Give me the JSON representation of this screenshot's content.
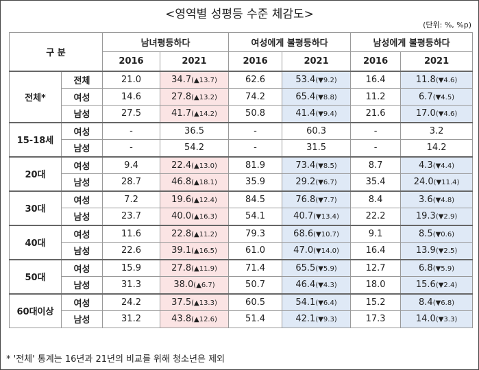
{
  "title": "<영역별 성평등 수준 체감도>",
  "unit": "(단위: %, %p)",
  "header": {
    "group_label": "구 분",
    "groups": [
      "남녀평등하다",
      "여성에게 불평등하다",
      "남성에게 불평등하다"
    ],
    "years": [
      "2016",
      "2021"
    ]
  },
  "groups": [
    {
      "label": "전체*",
      "rows": [
        {
          "sub": "전체",
          "cells": [
            "21.0",
            {
              "value": "34.7",
              "change": "(▲13.7)"
            },
            "62.6",
            {
              "value": "53.4",
              "change": "(▼9.2)"
            },
            "16.4",
            {
              "value": "11.8",
              "change": "(▼4.6)"
            }
          ]
        },
        {
          "sub": "여성",
          "cells": [
            "14.6",
            {
              "value": "27.8",
              "change": "(▲13.2)"
            },
            "74.2",
            {
              "value": "65.4",
              "change": "(▼8.8)"
            },
            "11.2",
            {
              "value": "6.7",
              "change": "(▼4.5)"
            }
          ]
        },
        {
          "sub": "남성",
          "cells": [
            "27.5",
            {
              "value": "41.7",
              "change": "(▲14.2)"
            },
            "50.8",
            {
              "value": "41.4",
              "change": "(▼9.4)"
            },
            "21.6",
            {
              "value": "17.0",
              "change": "(▼4.6)"
            }
          ]
        }
      ]
    },
    {
      "label": "15-18세",
      "rows": [
        {
          "sub": "여성",
          "cells": [
            "-",
            "36.5",
            "-",
            "60.3",
            "-",
            "3.2"
          ]
        },
        {
          "sub": "남성",
          "cells": [
            "-",
            "54.2",
            "-",
            "31.5",
            "-",
            "14.2"
          ]
        }
      ]
    },
    {
      "label": "20대",
      "rows": [
        {
          "sub": "여성",
          "cells": [
            "9.4",
            {
              "value": "22.4",
              "change": "(▲13.0)"
            },
            "81.9",
            {
              "value": "73.4",
              "change": "(▼8.5)"
            },
            "8.7",
            {
              "value": "4.3",
              "change": "(▼4.4)"
            }
          ]
        },
        {
          "sub": "남성",
          "cells": [
            "28.7",
            {
              "value": "46.8",
              "change": "(▲18.1)"
            },
            "35.9",
            {
              "value": "29.2",
              "change": "(▼6.7)"
            },
            "35.4",
            {
              "value": "24.0",
              "change": "(▼11.4)"
            }
          ]
        }
      ]
    },
    {
      "label": "30대",
      "rows": [
        {
          "sub": "여성",
          "cells": [
            "7.2",
            {
              "value": "19.6",
              "change": "(▲12.4)"
            },
            "84.5",
            {
              "value": "76.8",
              "change": "(▼7.7)"
            },
            "8.4",
            {
              "value": "3.6",
              "change": "(▼4.8)"
            }
          ]
        },
        {
          "sub": "남성",
          "cells": [
            "23.7",
            {
              "value": "40.0",
              "change": "(▲16.3)"
            },
            "54.1",
            {
              "value": "40.7",
              "change": "(▼13.4)"
            },
            "22.2",
            {
              "value": "19.3",
              "change": "(▼2.9)"
            }
          ]
        }
      ]
    },
    {
      "label": "40대",
      "rows": [
        {
          "sub": "여성",
          "cells": [
            "11.6",
            {
              "value": "22.8",
              "change": "(▲11.2)"
            },
            "79.3",
            {
              "value": "68.6",
              "change": "(▼10.7)"
            },
            "9.1",
            {
              "value": "8.5",
              "change": "(▼0.6)"
            }
          ]
        },
        {
          "sub": "남성",
          "cells": [
            "22.6",
            {
              "value": "39.1",
              "change": "(▲16.5)"
            },
            "61.0",
            {
              "value": "47.0",
              "change": "(▼14.0)"
            },
            "16.4",
            {
              "value": "13.9",
              "change": "(▼2.5)"
            }
          ]
        }
      ]
    },
    {
      "label": "50대",
      "rows": [
        {
          "sub": "여성",
          "cells": [
            "15.9",
            {
              "value": "27.8",
              "change": "(▲11.9)"
            },
            "71.4",
            {
              "value": "65.5",
              "change": "(▼5.9)"
            },
            "12.7",
            {
              "value": "6.8",
              "change": "(▼5.9)"
            }
          ]
        },
        {
          "sub": "남성",
          "cells": [
            "31.3",
            {
              "value": "38.0",
              "change": "(▲6.7)"
            },
            "50.7",
            {
              "value": "46.4",
              "change": "(▼4.3)"
            },
            "18.0",
            {
              "value": "15.6",
              "change": "(▼2.4)"
            }
          ]
        }
      ]
    },
    {
      "label": "60대이상",
      "rows": [
        {
          "sub": "여성",
          "cells": [
            "24.2",
            {
              "value": "37.5",
              "change": "(▲13.3)"
            },
            "60.5",
            {
              "value": "54.1",
              "change": "(▼6.4)"
            },
            "15.2",
            {
              "value": "8.4",
              "change": "(▼6.8)"
            }
          ]
        },
        {
          "sub": "남성",
          "cells": [
            "31.2",
            {
              "value": "43.8",
              "change": "(▲12.6)"
            },
            "51.4",
            {
              "value": "42.1",
              "change": "(▼9.3)"
            },
            "17.3",
            {
              "value": "14.0",
              "change": "(▼3.3)"
            }
          ]
        }
      ]
    }
  ],
  "footnote": "* '전체' 통계는 16년과 21년의 비교를 위해 청소년은 제외"
}
